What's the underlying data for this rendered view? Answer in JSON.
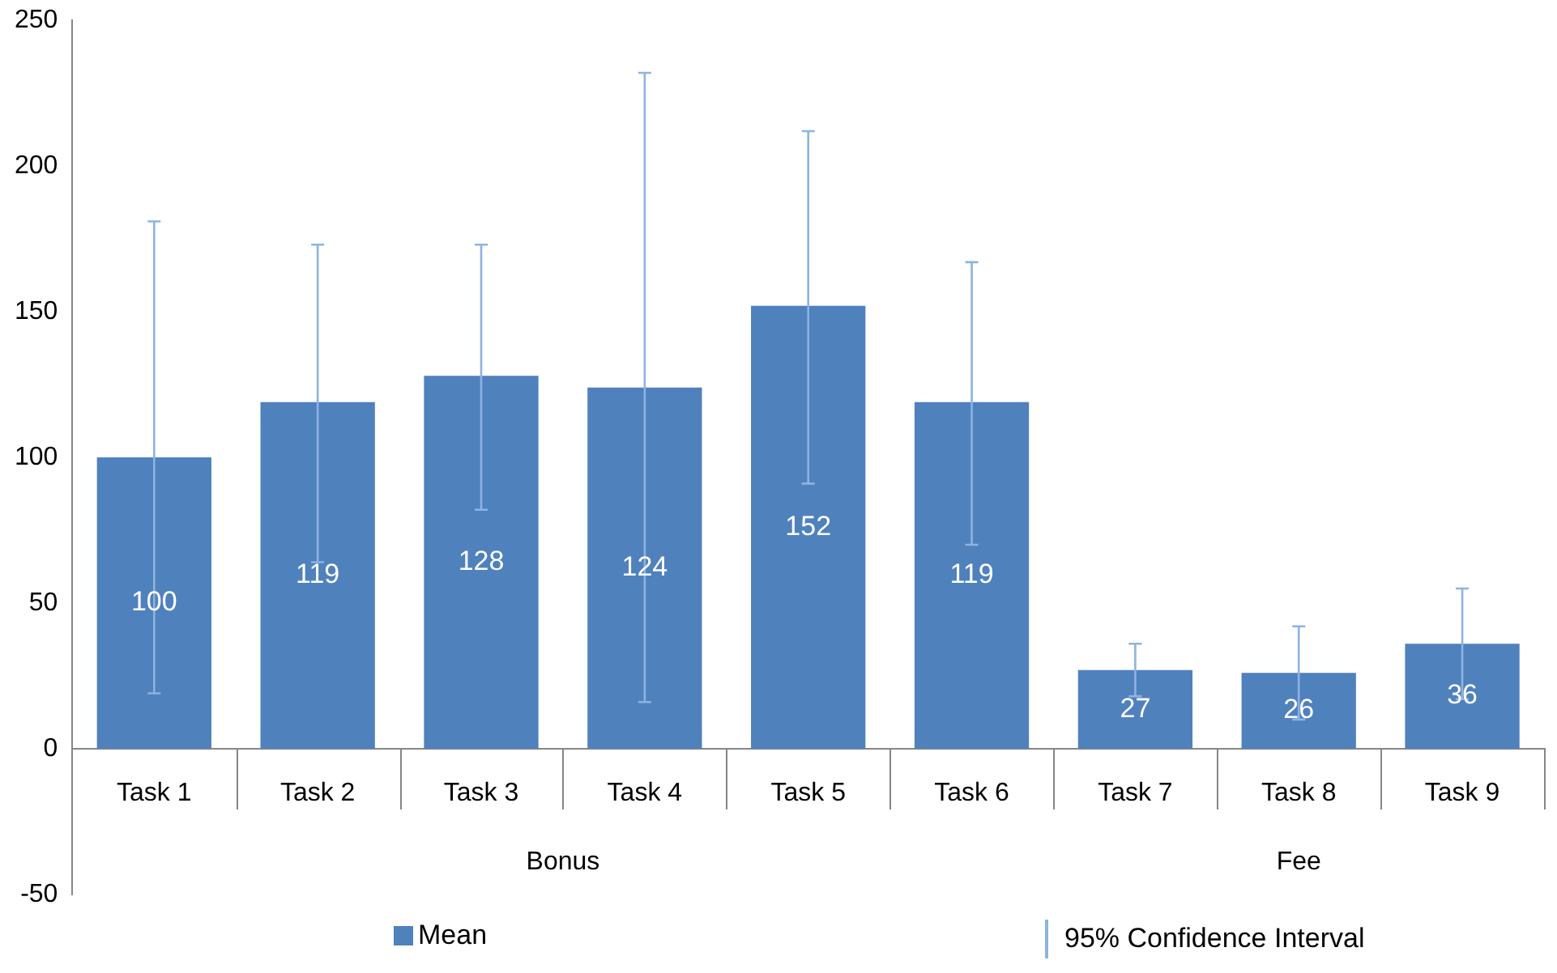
{
  "chart_data": {
    "type": "bar",
    "categories": [
      "Task 1",
      "Task 2",
      "Task 3",
      "Task 4",
      "Task 5",
      "Task 6",
      "Task 7",
      "Task 8",
      "Task 9"
    ],
    "series": [
      {
        "name": "Mean",
        "color": "#4f81bd",
        "values": [
          100,
          119,
          128,
          124,
          152,
          119,
          27,
          26,
          36
        ],
        "errors": [
          [
            19,
            181
          ],
          [
            64,
            173
          ],
          [
            82,
            173
          ],
          [
            16,
            232
          ],
          [
            91,
            212
          ],
          [
            70,
            167
          ],
          [
            18,
            36
          ],
          [
            10,
            42
          ],
          [
            17,
            55
          ]
        ]
      }
    ],
    "data_labels": true,
    "ylim": [
      -50,
      250
    ],
    "yticks": [
      -50,
      0,
      50,
      100,
      150,
      200,
      250
    ],
    "grid": false,
    "legend": "bottom",
    "annotations": [
      "Bonus",
      "Fee",
      "95% Confidence Interval"
    ]
  }
}
